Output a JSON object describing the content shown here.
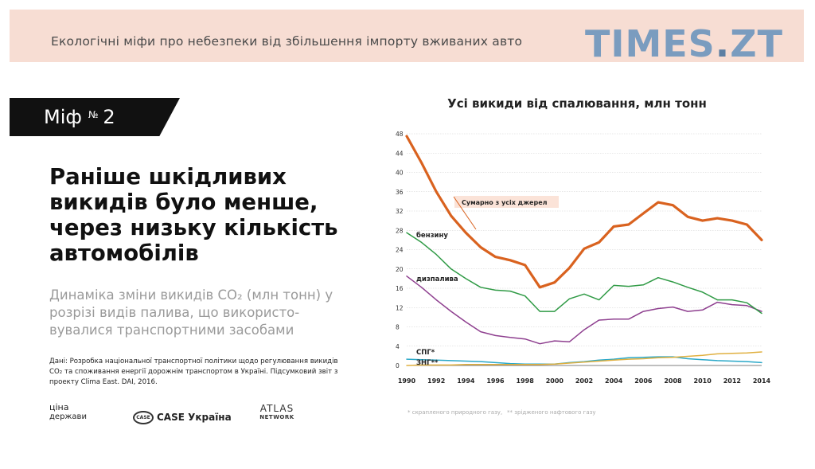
{
  "banner": {
    "title": "Екологічні міфи про небезпеки від збільшення імпорту вживаних авто",
    "brand_left": "TIMES",
    "brand_sep": ".",
    "brand_right": "ZT"
  },
  "myth": {
    "label": "Міф",
    "number_sign": "№",
    "number": "2"
  },
  "headline": "Раніше шкідливих викидів було менше, через низьку кількість автомобілів",
  "subtext": "Динаміка зміни викидів CO₂ (млн тонн) у розрізі видів палива, що використо-вувалися транспортними засобами",
  "source": "Дані: Розробка національної транспортної політики щодо регулювання викидів CO₂ та споживання енергії дорожнім транспортом в Україні. Підсумковий звіт з проекту Clima East. DAI, 2016.",
  "logos": {
    "logo1_top": "ціна",
    "logo1_bottom": "держави",
    "logo2_mark": "CASE",
    "logo2_name": "CASE Україна",
    "logo3_top": "ATLAS",
    "logo3_bottom": "NETWORK"
  },
  "colors": {
    "total": "#d9621f",
    "gasoline": "#2f9a45",
    "diesel": "#8e3f8f",
    "lpg": "#e0b040",
    "cng": "#2aa8c8",
    "grid": "#cfcfcf"
  },
  "chart_data": {
    "type": "line",
    "title": "Усі викиди від спалювання, млн тонн",
    "xlabel": "",
    "ylabel": "",
    "ylim": [
      0,
      48
    ],
    "yticks": [
      0,
      4,
      8,
      12,
      16,
      20,
      24,
      28,
      32,
      36,
      40,
      44,
      48
    ],
    "xlim": [
      1990,
      2014
    ],
    "xticks": [
      1990,
      1992,
      1994,
      1996,
      1998,
      2000,
      2002,
      2004,
      2006,
      2008,
      2010,
      2012,
      2014
    ],
    "x": [
      1990,
      1991,
      1992,
      1993,
      1994,
      1995,
      1996,
      1997,
      1998,
      1999,
      2000,
      2001,
      2002,
      2003,
      2004,
      2005,
      2006,
      2007,
      2008,
      2009,
      2010,
      2011,
      2012,
      2013,
      2014
    ],
    "series": [
      {
        "name": "Сумарно з усіх джерел",
        "key": "total",
        "values": [
          47.5,
          42,
          36,
          31,
          27.5,
          24.5,
          22.5,
          21.8,
          20.8,
          16.2,
          17.2,
          20.2,
          24.2,
          25.5,
          28.8,
          29.2,
          31.5,
          33.8,
          33.2,
          30.8,
          30,
          30.5,
          30,
          29.2,
          26
        ]
      },
      {
        "name": "бензину",
        "key": "gasoline",
        "values": [
          27.5,
          25.5,
          23,
          20,
          18,
          16.2,
          15.6,
          15.4,
          14.4,
          11.2,
          11.2,
          13.8,
          14.8,
          13.6,
          16.6,
          16.4,
          16.7,
          18.2,
          17.3,
          16.2,
          15.2,
          13.6,
          13.6,
          13,
          10.8
        ]
      },
      {
        "name": "дизпалива",
        "key": "diesel",
        "values": [
          18.5,
          16.2,
          13.6,
          11.2,
          9,
          7,
          6.2,
          5.8,
          5.5,
          4.5,
          5.1,
          4.9,
          7.4,
          9.4,
          9.6,
          9.6,
          11.2,
          11.8,
          12.1,
          11.2,
          11.5,
          13.1,
          12.6,
          12.4,
          11.2
        ]
      },
      {
        "name": "СПГ*",
        "key": "lpg",
        "values": [
          0,
          0.1,
          0.1,
          0.1,
          0.2,
          0.2,
          0.2,
          0.2,
          0.2,
          0.2,
          0.3,
          0.5,
          0.7,
          0.9,
          1.1,
          1.3,
          1.4,
          1.6,
          1.7,
          1.9,
          2.1,
          2.4,
          2.5,
          2.6,
          2.8
        ]
      },
      {
        "name": "ЗНГ**",
        "key": "cng",
        "values": [
          1.3,
          1.2,
          1.1,
          1,
          0.9,
          0.8,
          0.6,
          0.4,
          0.3,
          0.3,
          0.3,
          0.6,
          0.8,
          1.1,
          1.3,
          1.6,
          1.7,
          1.8,
          1.8,
          1.4,
          1.2,
          1,
          0.9,
          0.8,
          0.6
        ]
      }
    ],
    "annotations": {
      "total_label": "Сумарно з усіх джерел",
      "gasoline_label": "бензину",
      "diesel_label": "дизпалива",
      "lpg_label": "СПГ*",
      "cng_label": "ЗНГ**"
    },
    "footnote_1": "* скрапленого природного газу,",
    "footnote_2": "** зрідженого нафтового газу"
  }
}
